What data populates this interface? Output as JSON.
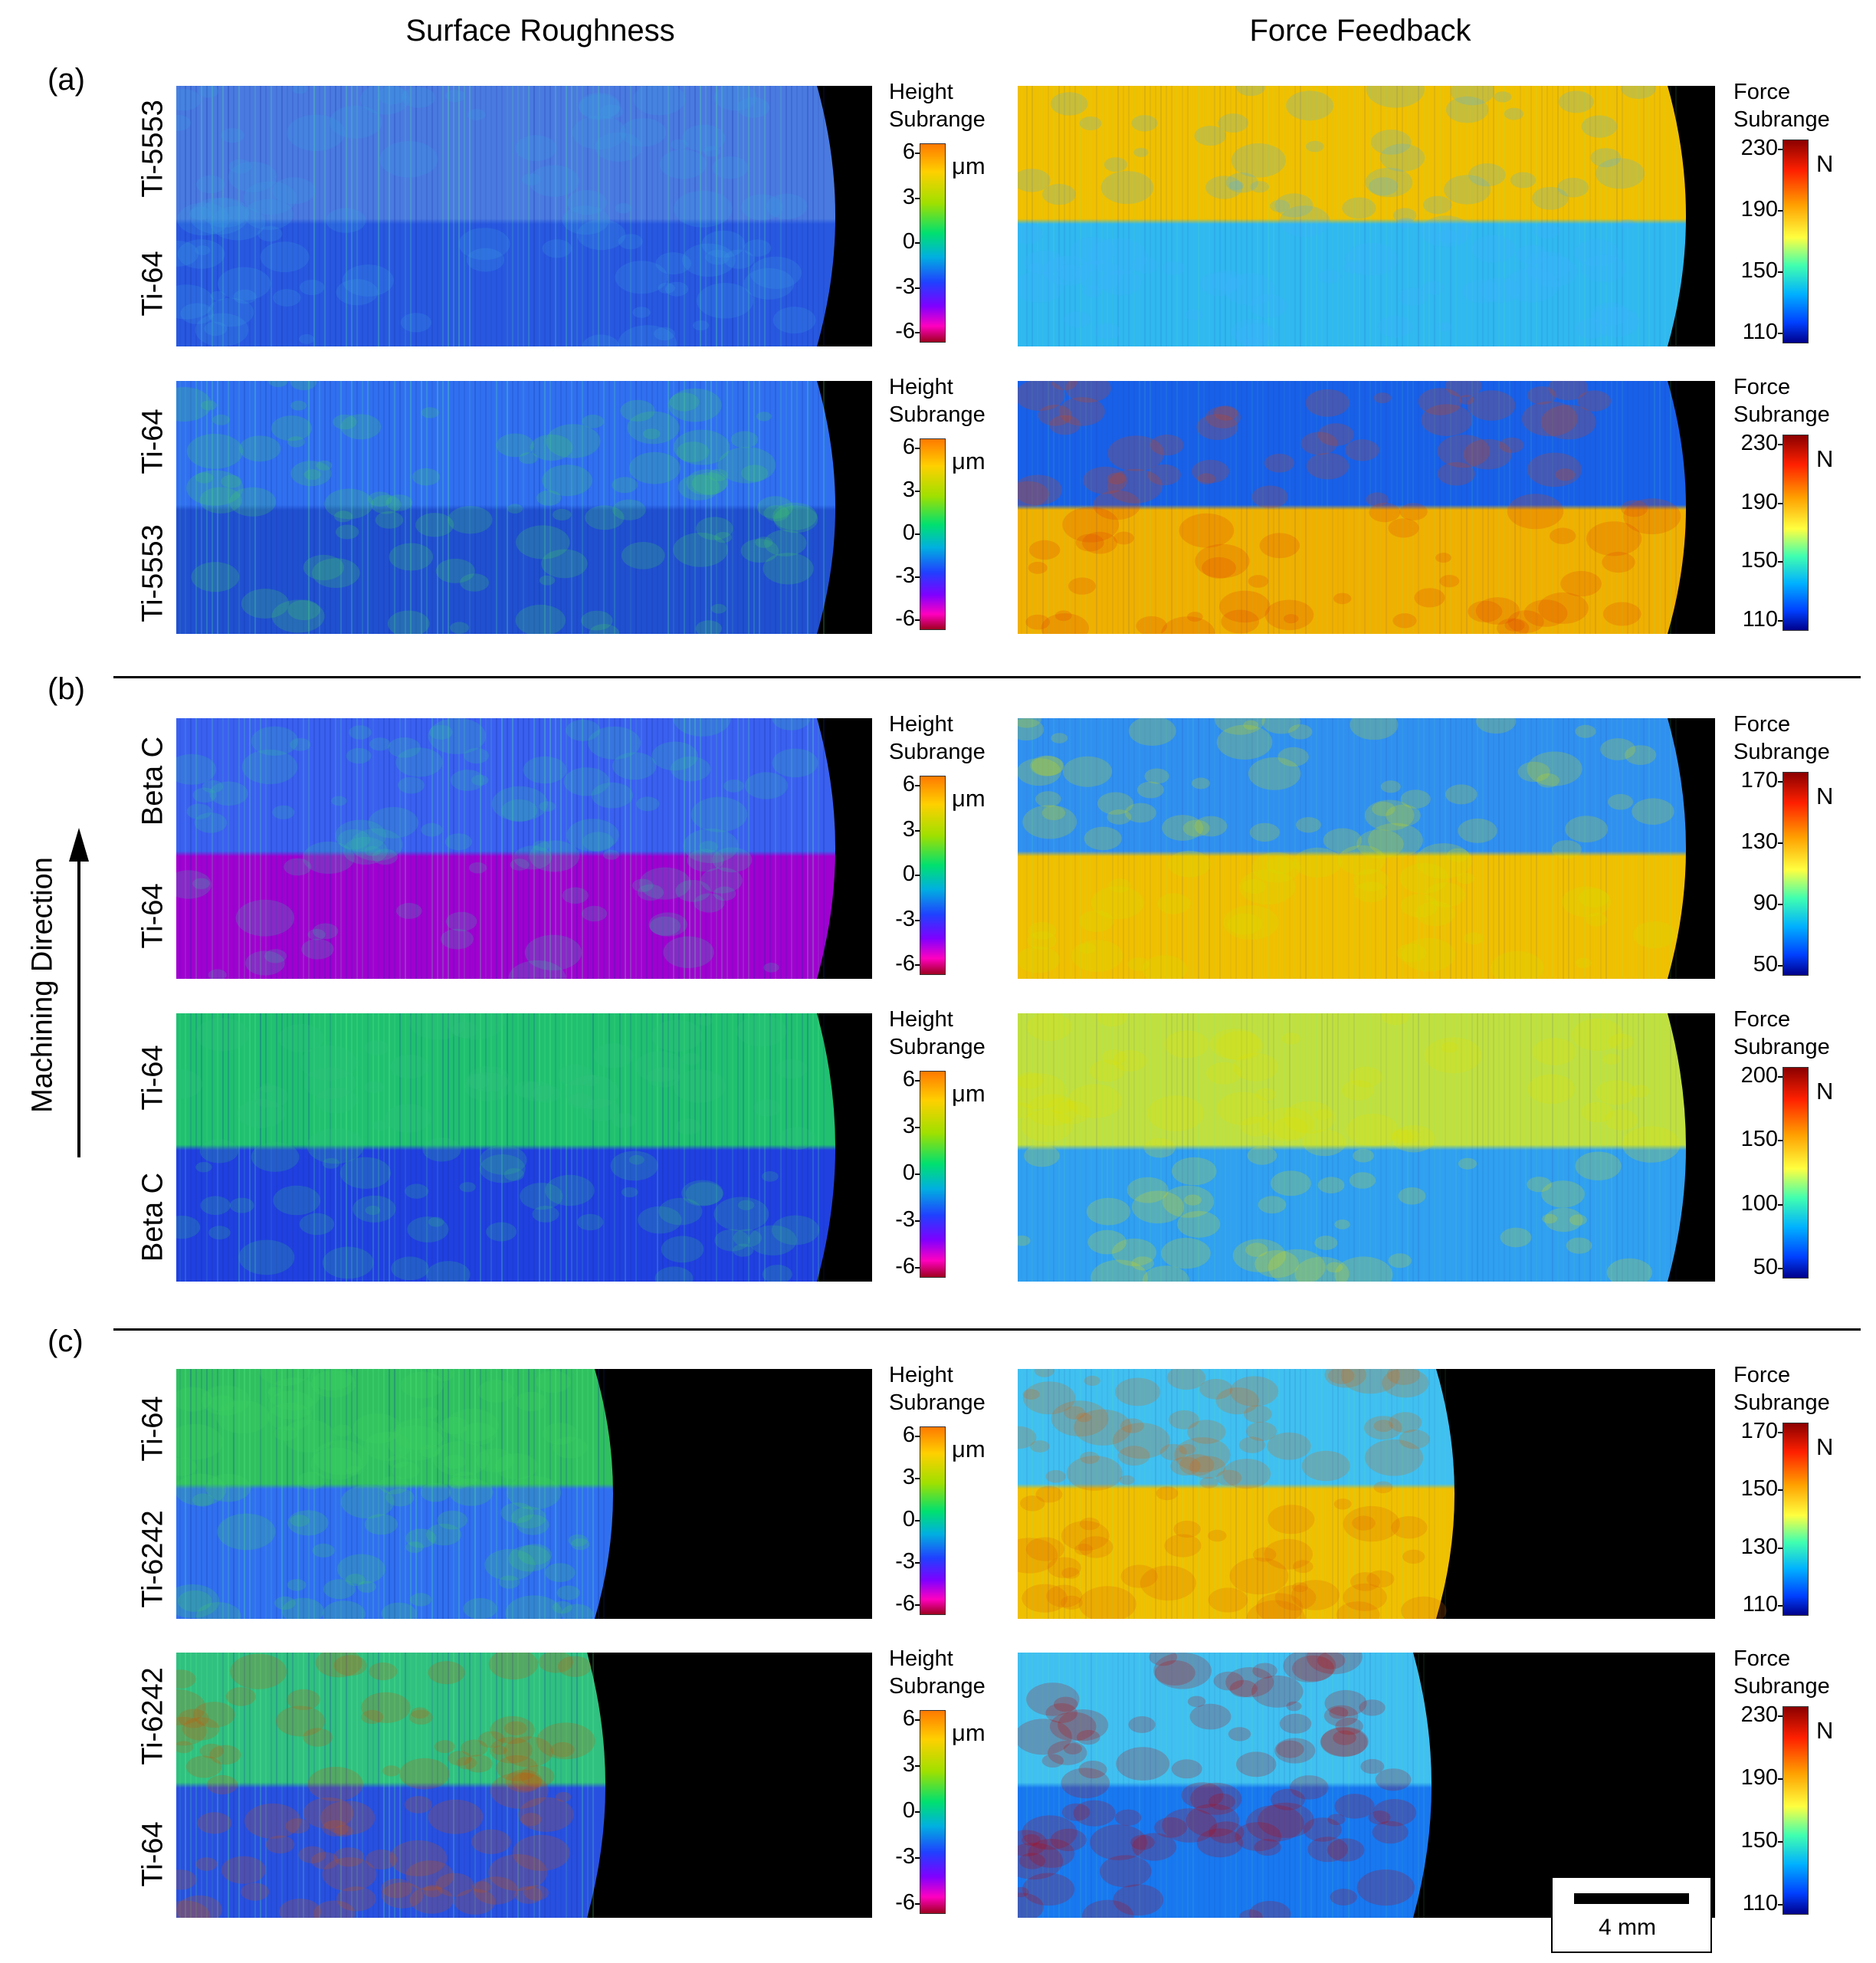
{
  "figure": {
    "col_titles": {
      "left": "Surface Roughness",
      "right": "Force Feedback"
    },
    "sections": [
      "(a)",
      "(b)",
      "(c)"
    ],
    "machining_direction": "Machining Direction",
    "scale_bar": "4 mm",
    "height_bar": {
      "title_line1": "Height",
      "title_line2": "Subrange",
      "unit": "μm",
      "ticks": [
        "6",
        "3",
        "0",
        "-3",
        "-6"
      ]
    },
    "force_unit": "N",
    "force_title_line1": "Force",
    "force_title_line2": "Subrange",
    "rows": [
      {
        "top_label": "Ti-5553",
        "bottom_label": "Ti-64",
        "force_ticks": [
          "230",
          "190",
          "150",
          "110"
        ]
      },
      {
        "top_label": "Ti-64",
        "bottom_label": "Ti-5553",
        "force_ticks": [
          "230",
          "190",
          "150",
          "110"
        ]
      },
      {
        "top_label": "Beta C",
        "bottom_label": "Ti-64",
        "force_ticks": [
          "170",
          "130",
          "90",
          "50"
        ]
      },
      {
        "top_label": "Ti-64",
        "bottom_label": "Beta C",
        "force_ticks": [
          "200",
          "150",
          "100",
          "50"
        ]
      },
      {
        "top_label": "Ti-64",
        "bottom_label": "Ti-6242",
        "force_ticks": [
          "170",
          "150",
          "130",
          "110"
        ]
      },
      {
        "top_label": "Ti-6242",
        "bottom_label": "Ti-64",
        "force_ticks": [
          "230",
          "190",
          "150",
          "110"
        ]
      }
    ]
  }
}
